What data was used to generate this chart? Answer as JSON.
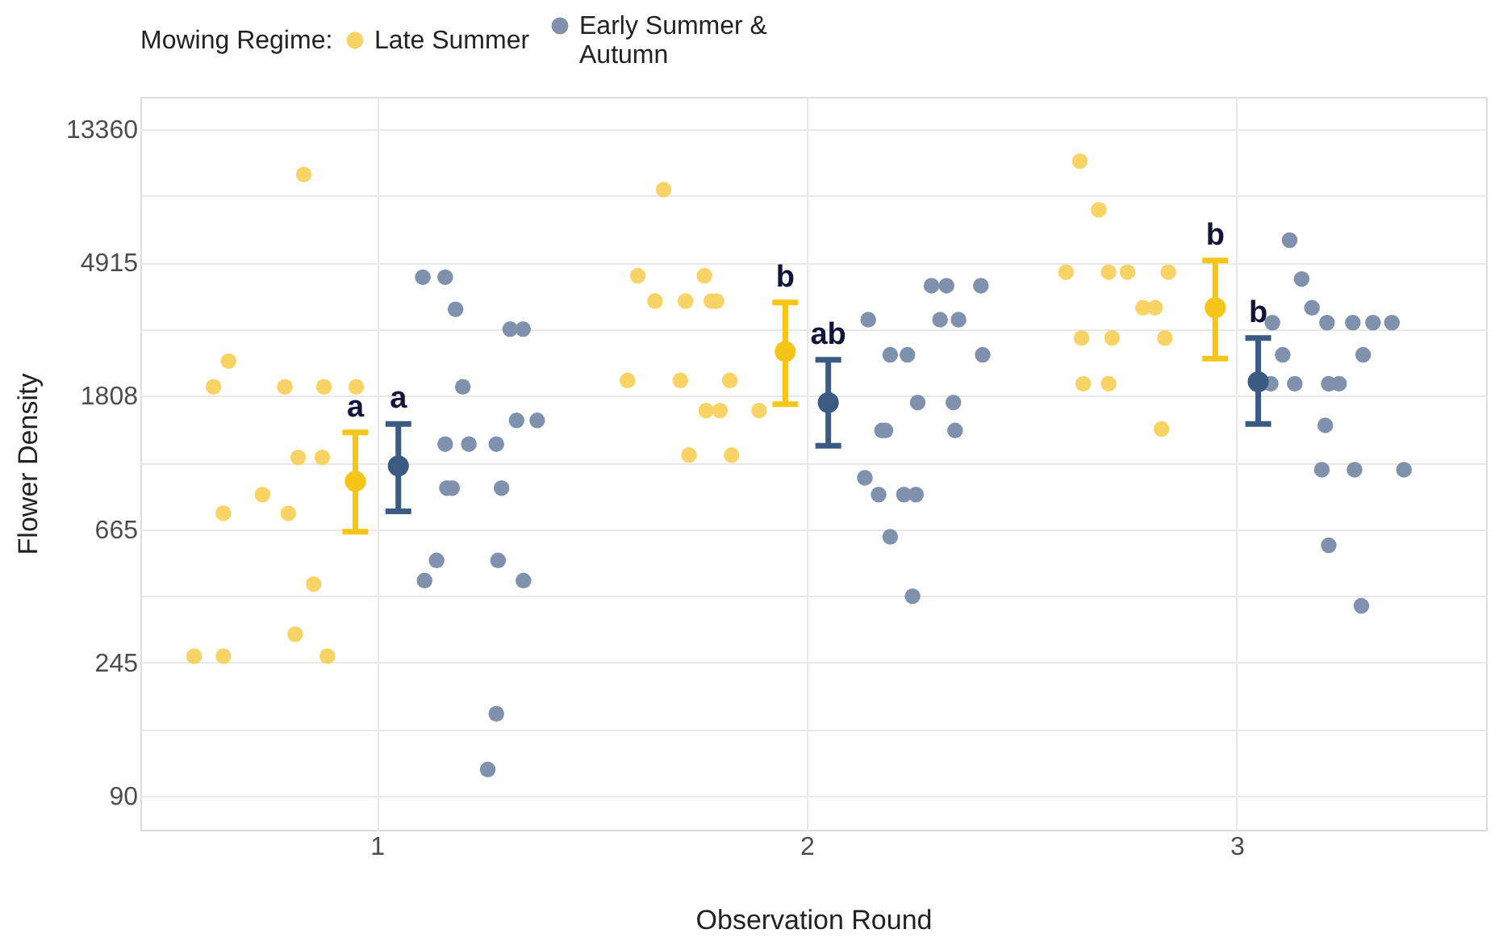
{
  "chart_data": {
    "type": "scatter",
    "xlabel": "Observation Round",
    "ylabel": "Flower Density",
    "legend_title": "Mowing Regime:",
    "legend": "top",
    "grid": true,
    "log": "y",
    "marker": "circle",
    "xlim": [
      0.45,
      3.58
    ],
    "xticks": [
      1,
      2,
      3
    ],
    "ylim": [
      70,
      17000
    ],
    "yticks": [
      90,
      {
        "value": 148,
        "label": null
      },
      245,
      {
        "value": 403,
        "label": null
      },
      665,
      {
        "value": 1097,
        "label": null
      },
      1808,
      {
        "value": 2981,
        "label": null
      },
      4915,
      {
        "value": 8103,
        "label": null
      },
      13360
    ],
    "series": [
      {
        "name": "Late Summer",
        "type": "scatter",
        "color": "#f8d365",
        "x": [
          0.83,
          0.655,
          0.62,
          0.786,
          0.877,
          0.952,
          0.817,
          0.873,
          0.734,
          0.643,
          0.794,
          0.853,
          0.81,
          0.575,
          0.643,
          0.885,
          1.667,
          1.607,
          1.762,
          1.647,
          1.718,
          1.778,
          1.79,
          1.583,
          1.706,
          1.821,
          1.766,
          1.798,
          1.889,
          1.726,
          1.825,
          2.635,
          2.679,
          2.603,
          2.702,
          2.746,
          2.841,
          2.782,
          2.81,
          2.639,
          2.71,
          2.833,
          2.643,
          2.702,
          2.825
        ],
        "values": [
          9500,
          2345,
          1935,
          1935,
          1935,
          1935,
          1140,
          1140,
          863,
          750,
          750,
          441,
          303,
          257,
          257,
          257,
          8480,
          4450,
          4450,
          3680,
          3680,
          3680,
          3680,
          2030,
          2030,
          2030,
          1620,
          1620,
          1620,
          1160,
          1160,
          10500,
          7290,
          4570,
          4570,
          4570,
          4570,
          3500,
          3500,
          2790,
          2790,
          2790,
          1980,
          1980,
          1410
        ]
      },
      {
        "name": "Early Summer &\nAutumn",
        "type": "scatter",
        "color": "#7f91ad",
        "x": [
          1.107,
          1.159,
          1.183,
          1.31,
          1.34,
          1.2,
          1.325,
          1.373,
          1.159,
          1.214,
          1.278,
          1.163,
          1.175,
          1.29,
          1.139,
          1.282,
          1.111,
          1.341,
          1.278,
          1.258,
          2.29,
          2.325,
          2.405,
          2.143,
          2.31,
          2.353,
          2.194,
          2.234,
          2.409,
          2.258,
          2.341,
          2.175,
          2.183,
          2.345,
          2.135,
          2.167,
          2.226,
          2.254,
          2.194,
          2.246,
          3.123,
          3.151,
          3.175,
          3.083,
          3.21,
          3.27,
          3.317,
          3.361,
          3.107,
          3.294,
          3.079,
          3.135,
          3.214,
          3.238,
          3.206,
          3.198,
          3.274,
          3.389,
          3.214,
          3.29
        ],
        "values": [
          4400,
          4400,
          3460,
          2980,
          2980,
          1935,
          1505,
          1505,
          1260,
          1260,
          1260,
          906,
          906,
          906,
          527,
          527,
          453,
          453,
          167,
          110,
          4130,
          4130,
          4130,
          3200,
          3200,
          3200,
          2460,
          2460,
          2460,
          1720,
          1720,
          1395,
          1395,
          1395,
          979,
          863,
          863,
          863,
          629,
          403,
          5810,
          4340,
          3500,
          3130,
          3130,
          3130,
          3130,
          3130,
          2460,
          2460,
          1980,
          1980,
          1980,
          1980,
          1450,
          1040,
          1040,
          1040,
          590,
          375
        ]
      },
      {
        "type": "scatter",
        "color": "#f5c518",
        "x": [
          0.95,
          1.95,
          2.95
        ],
        "values": [
          953,
          2520,
          3500
        ],
        "errors": [
          [
            653,
            1375
          ],
          [
            1700,
            3640
          ],
          [
            2390,
            4990
          ]
        ]
      },
      {
        "type": "scatter",
        "color": "#3b5b82",
        "x": [
          1.05,
          2.05,
          3.05
        ],
        "values": [
          1070,
          1720,
          2010
        ],
        "errors": [
          [
            761,
            1465
          ],
          [
            1244,
            2370
          ],
          [
            1465,
            2790
          ]
        ]
      }
    ],
    "annotations": [
      {
        "text": "a",
        "x": 0.95,
        "y": 1375
      },
      {
        "text": "a",
        "x": 1.05,
        "y": 1465
      },
      {
        "text": "b",
        "x": 1.95,
        "y": 3640
      },
      {
        "text": "ab",
        "x": 2.05,
        "y": 2370
      },
      {
        "text": "b",
        "x": 2.95,
        "y": 4990
      },
      {
        "text": "b",
        "x": 3.05,
        "y": 2790
      }
    ]
  }
}
